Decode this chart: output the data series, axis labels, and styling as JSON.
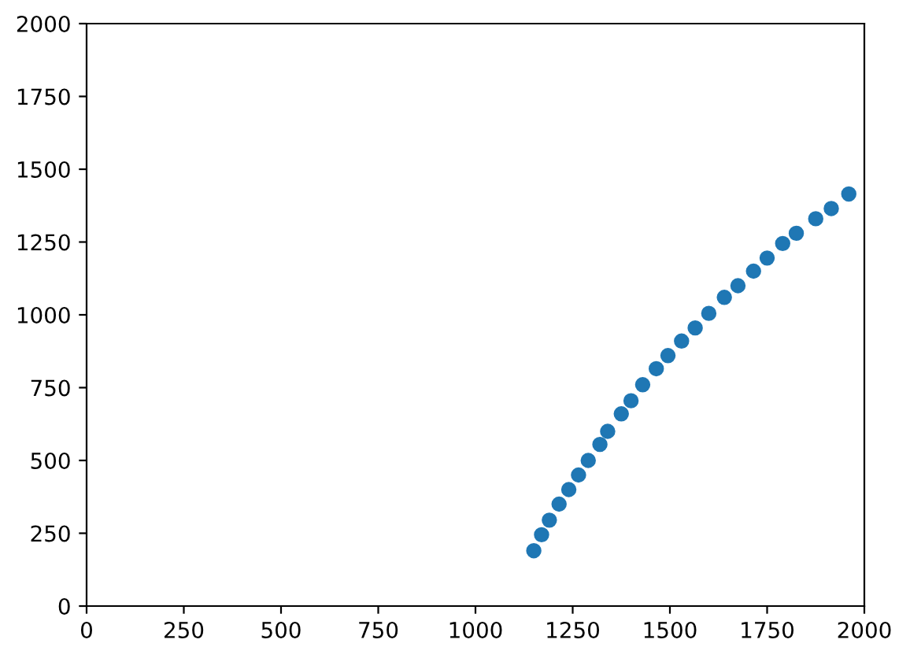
{
  "chart_data": {
    "type": "scatter",
    "x": [
      1150,
      1170,
      1190,
      1215,
      1240,
      1265,
      1290,
      1320,
      1340,
      1375,
      1400,
      1430,
      1465,
      1495,
      1530,
      1565,
      1600,
      1640,
      1675,
      1715,
      1750,
      1790,
      1825,
      1875,
      1915,
      1960
    ],
    "values": [
      190,
      245,
      295,
      350,
      400,
      450,
      500,
      555,
      600,
      660,
      705,
      760,
      815,
      860,
      910,
      955,
      1005,
      1060,
      1100,
      1150,
      1195,
      1245,
      1280,
      1330,
      1365,
      1415
    ],
    "color": "#1f77b4",
    "marker": "circle",
    "grid": false,
    "xlim": [
      0,
      2000
    ],
    "xticks": [
      0,
      250,
      500,
      750,
      1000,
      1250,
      1500,
      1750,
      2000
    ],
    "ylim": [
      0,
      2000
    ],
    "yticks": [
      0,
      250,
      500,
      750,
      1000,
      1250,
      1500,
      1750,
      2000
    ]
  }
}
